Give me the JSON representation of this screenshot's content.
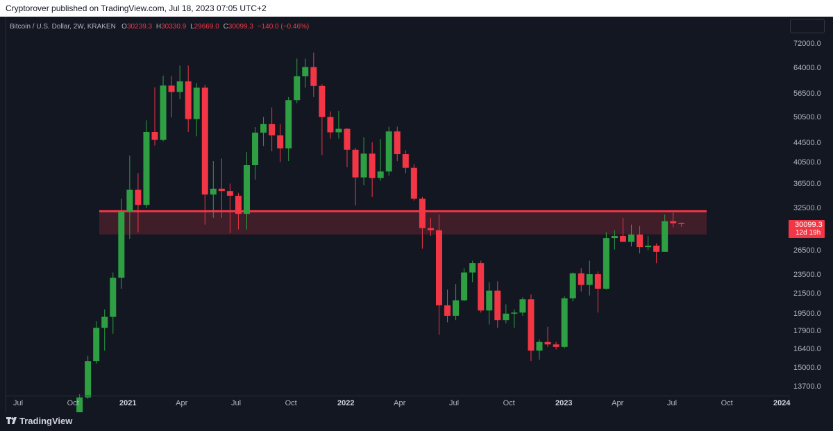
{
  "header": {
    "publish_line": "Cryptorover published on TradingView.com, Jul 18, 2023 07:05 UTC+2"
  },
  "symbol": {
    "title": "Bitcoin / U.S. Dollar, 2W, KRAKEN",
    "o_key": "O",
    "o_val": "30239.3",
    "h_key": "H",
    "h_val": "30330.9",
    "l_key": "L",
    "l_val": "29669.0",
    "c_key": "C",
    "c_val": "30099.3",
    "change": "−140.0 (−0.46%)"
  },
  "price_axis": {
    "labels": [
      "72000.0",
      "64000.0",
      "56500.0",
      "50500.0",
      "44500.0",
      "40500.0",
      "36500.0",
      "32500.0",
      "26500.0",
      "23500.0",
      "21500.0",
      "19500.0",
      "17900.0",
      "16400.0",
      "15000.0",
      "13700.0"
    ]
  },
  "last_price": {
    "value": "30099.3",
    "countdown": "12d 19h"
  },
  "time_axis": {
    "labels": [
      {
        "text": "Jul",
        "year": false
      },
      {
        "text": "Oct",
        "year": false
      },
      {
        "text": "2021",
        "year": true
      },
      {
        "text": "Apr",
        "year": false
      },
      {
        "text": "Jul",
        "year": false
      },
      {
        "text": "Oct",
        "year": false
      },
      {
        "text": "2022",
        "year": true
      },
      {
        "text": "Apr",
        "year": false
      },
      {
        "text": "Jul",
        "year": false
      },
      {
        "text": "Oct",
        "year": false
      },
      {
        "text": "2023",
        "year": true
      },
      {
        "text": "Apr",
        "year": false
      },
      {
        "text": "Jul",
        "year": false
      },
      {
        "text": "Oct",
        "year": false
      },
      {
        "text": "2024",
        "year": true
      }
    ]
  },
  "resistance_zone": {
    "top": 32000,
    "bottom": 28600,
    "color": "#f23645"
  },
  "colors": {
    "up": "#2ea043",
    "down": "#f23645",
    "background": "#131722"
  },
  "brand": {
    "name": "TradingView"
  },
  "chart_data": {
    "type": "candlestick",
    "title": "Bitcoin / U.S. Dollar, 2W, KRAKEN",
    "log_scale": true,
    "ylim": [
      12700,
      76000
    ],
    "candles": [
      {
        "date": "2020-10-12",
        "o": 11400,
        "h": 13200,
        "l": 11300,
        "c": 13000
      },
      {
        "date": "2020-10-26",
        "o": 13000,
        "h": 15900,
        "l": 12900,
        "c": 15500
      },
      {
        "date": "2020-11-09",
        "o": 15500,
        "h": 18800,
        "l": 15300,
        "c": 18200
      },
      {
        "date": "2020-11-23",
        "o": 18200,
        "h": 19900,
        "l": 16300,
        "c": 19200
      },
      {
        "date": "2020-12-07",
        "o": 19200,
        "h": 23800,
        "l": 17700,
        "c": 23200
      },
      {
        "date": "2020-12-21",
        "o": 23200,
        "h": 34000,
        "l": 22000,
        "c": 32000
      },
      {
        "date": "2021-01-04",
        "o": 32000,
        "h": 41900,
        "l": 28000,
        "c": 35500
      },
      {
        "date": "2021-01-18",
        "o": 35500,
        "h": 38500,
        "l": 28900,
        "c": 33000
      },
      {
        "date": "2021-02-01",
        "o": 33000,
        "h": 49700,
        "l": 32500,
        "c": 47000
      },
      {
        "date": "2021-02-15",
        "o": 47000,
        "h": 58300,
        "l": 44000,
        "c": 45200
      },
      {
        "date": "2021-03-01",
        "o": 45200,
        "h": 61700,
        "l": 44900,
        "c": 58800
      },
      {
        "date": "2021-03-15",
        "o": 58800,
        "h": 61600,
        "l": 50400,
        "c": 57000
      },
      {
        "date": "2021-03-29",
        "o": 57000,
        "h": 64800,
        "l": 55000,
        "c": 60000
      },
      {
        "date": "2021-04-12",
        "o": 60000,
        "h": 64800,
        "l": 47000,
        "c": 50000
      },
      {
        "date": "2021-04-26",
        "o": 50000,
        "h": 59500,
        "l": 46000,
        "c": 58200
      },
      {
        "date": "2021-05-10",
        "o": 58200,
        "h": 59000,
        "l": 30000,
        "c": 34700
      },
      {
        "date": "2021-05-24",
        "o": 34700,
        "h": 40800,
        "l": 31000,
        "c": 35700
      },
      {
        "date": "2021-06-07",
        "o": 35700,
        "h": 41300,
        "l": 31000,
        "c": 35300
      },
      {
        "date": "2021-06-21",
        "o": 35300,
        "h": 36600,
        "l": 28800,
        "c": 34500
      },
      {
        "date": "2021-07-05",
        "o": 34500,
        "h": 35000,
        "l": 29300,
        "c": 31600
      },
      {
        "date": "2021-07-19",
        "o": 31600,
        "h": 42600,
        "l": 29300,
        "c": 40000
      },
      {
        "date": "2021-08-02",
        "o": 40000,
        "h": 48100,
        "l": 37300,
        "c": 46800
      },
      {
        "date": "2021-08-16",
        "o": 46800,
        "h": 50500,
        "l": 43900,
        "c": 48800
      },
      {
        "date": "2021-08-30",
        "o": 48800,
        "h": 52900,
        "l": 42800,
        "c": 46200
      },
      {
        "date": "2021-09-13",
        "o": 46200,
        "h": 48800,
        "l": 40600,
        "c": 43400
      },
      {
        "date": "2021-09-27",
        "o": 43400,
        "h": 55600,
        "l": 40800,
        "c": 54800
      },
      {
        "date": "2021-10-11",
        "o": 54800,
        "h": 67000,
        "l": 54000,
        "c": 61500
      },
      {
        "date": "2021-10-25",
        "o": 61500,
        "h": 67000,
        "l": 58200,
        "c": 64300
      },
      {
        "date": "2021-11-08",
        "o": 64300,
        "h": 69000,
        "l": 55600,
        "c": 58700
      },
      {
        "date": "2021-11-22",
        "o": 58700,
        "h": 59200,
        "l": 42000,
        "c": 50500
      },
      {
        "date": "2021-12-06",
        "o": 50500,
        "h": 51900,
        "l": 45500,
        "c": 46900
      },
      {
        "date": "2021-12-20",
        "o": 46900,
        "h": 52000,
        "l": 45500,
        "c": 47700
      },
      {
        "date": "2022-01-03",
        "o": 47700,
        "h": 47900,
        "l": 39600,
        "c": 43100
      },
      {
        "date": "2022-01-17",
        "o": 43100,
        "h": 43500,
        "l": 32900,
        "c": 37700
      },
      {
        "date": "2022-01-31",
        "o": 37700,
        "h": 45800,
        "l": 36300,
        "c": 42300
      },
      {
        "date": "2022-02-14",
        "o": 42300,
        "h": 44700,
        "l": 34300,
        "c": 37600
      },
      {
        "date": "2022-02-28",
        "o": 37600,
        "h": 45400,
        "l": 37100,
        "c": 38800
      },
      {
        "date": "2022-03-14",
        "o": 38800,
        "h": 48200,
        "l": 38000,
        "c": 47100
      },
      {
        "date": "2022-03-28",
        "o": 47100,
        "h": 48200,
        "l": 40800,
        "c": 42200
      },
      {
        "date": "2022-04-11",
        "o": 42200,
        "h": 43000,
        "l": 38500,
        "c": 39500
      },
      {
        "date": "2022-04-25",
        "o": 39500,
        "h": 40200,
        "l": 33700,
        "c": 34000
      },
      {
        "date": "2022-05-09",
        "o": 34000,
        "h": 34300,
        "l": 26700,
        "c": 29500
      },
      {
        "date": "2022-05-23",
        "o": 29500,
        "h": 31000,
        "l": 28400,
        "c": 29200
      },
      {
        "date": "2022-06-06",
        "o": 29200,
        "h": 31500,
        "l": 17600,
        "c": 20300
      },
      {
        "date": "2022-06-20",
        "o": 20300,
        "h": 21900,
        "l": 18700,
        "c": 19300
      },
      {
        "date": "2022-07-04",
        "o": 19300,
        "h": 22500,
        "l": 18900,
        "c": 20800
      },
      {
        "date": "2022-07-18",
        "o": 20800,
        "h": 24300,
        "l": 20700,
        "c": 23800
      },
      {
        "date": "2022-08-01",
        "o": 23800,
        "h": 25200,
        "l": 22700,
        "c": 24900
      },
      {
        "date": "2022-08-15",
        "o": 24900,
        "h": 25200,
        "l": 19600,
        "c": 19800
      },
      {
        "date": "2022-08-29",
        "o": 19800,
        "h": 22700,
        "l": 18500,
        "c": 21800
      },
      {
        "date": "2022-09-12",
        "o": 21800,
        "h": 22800,
        "l": 18200,
        "c": 18900
      },
      {
        "date": "2022-09-26",
        "o": 18900,
        "h": 20400,
        "l": 18600,
        "c": 19500
      },
      {
        "date": "2022-10-10",
        "o": 19500,
        "h": 19900,
        "l": 18200,
        "c": 19600
      },
      {
        "date": "2022-10-24",
        "o": 19600,
        "h": 21100,
        "l": 19300,
        "c": 20900
      },
      {
        "date": "2022-11-07",
        "o": 20900,
        "h": 21400,
        "l": 15500,
        "c": 16300
      },
      {
        "date": "2022-11-21",
        "o": 16300,
        "h": 17200,
        "l": 15600,
        "c": 17000
      },
      {
        "date": "2022-12-05",
        "o": 17000,
        "h": 18300,
        "l": 16600,
        "c": 16800
      },
      {
        "date": "2022-12-19",
        "o": 16800,
        "h": 17000,
        "l": 16400,
        "c": 16600
      },
      {
        "date": "2023-01-02",
        "o": 16600,
        "h": 21200,
        "l": 16500,
        "c": 21000
      },
      {
        "date": "2023-01-16",
        "o": 21000,
        "h": 23800,
        "l": 20700,
        "c": 23700
      },
      {
        "date": "2023-01-30",
        "o": 23700,
        "h": 24300,
        "l": 21700,
        "c": 22400
      },
      {
        "date": "2023-02-13",
        "o": 22400,
        "h": 25200,
        "l": 21300,
        "c": 23600
      },
      {
        "date": "2023-02-27",
        "o": 23600,
        "h": 23900,
        "l": 19600,
        "c": 22000
      },
      {
        "date": "2023-03-13",
        "o": 22000,
        "h": 28900,
        "l": 21900,
        "c": 28100
      },
      {
        "date": "2023-03-27",
        "o": 28100,
        "h": 29200,
        "l": 26600,
        "c": 28400
      },
      {
        "date": "2023-04-10",
        "o": 28400,
        "h": 31000,
        "l": 27800,
        "c": 27600
      },
      {
        "date": "2023-04-24",
        "o": 27600,
        "h": 30000,
        "l": 27000,
        "c": 28600
      },
      {
        "date": "2023-05-08",
        "o": 28600,
        "h": 29800,
        "l": 26100,
        "c": 26900
      },
      {
        "date": "2023-05-22",
        "o": 26900,
        "h": 28400,
        "l": 26500,
        "c": 27100
      },
      {
        "date": "2023-06-05",
        "o": 27100,
        "h": 27400,
        "l": 24900,
        "c": 26300
      },
      {
        "date": "2023-06-19",
        "o": 26300,
        "h": 31500,
        "l": 26300,
        "c": 30500
      },
      {
        "date": "2023-07-03",
        "o": 30500,
        "h": 31800,
        "l": 29600,
        "c": 30200
      },
      {
        "date": "2023-07-17",
        "o": 30239.3,
        "h": 30330.9,
        "l": 29669.0,
        "c": 30099.3
      }
    ]
  }
}
